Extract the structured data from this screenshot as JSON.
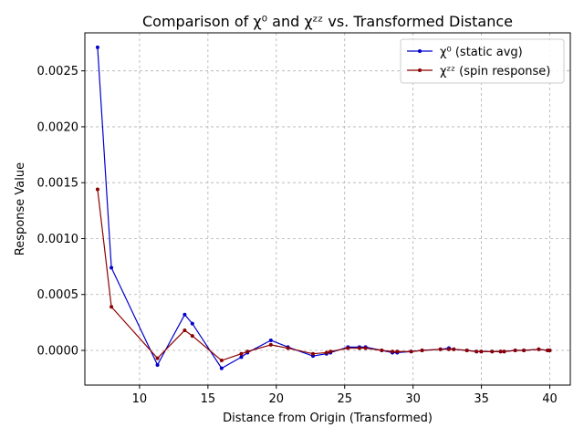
{
  "chart_data": {
    "type": "line",
    "title": "Comparison of χ⁰ and χᶻᶻ vs. Transformed Distance",
    "xlabel": "Distance from Origin (Transformed)",
    "ylabel": "Response Value",
    "xlim": [
      6.0,
      41.5
    ],
    "ylim": [
      -0.00031,
      0.00284
    ],
    "x_ticks": [
      10,
      15,
      20,
      25,
      30,
      35,
      40
    ],
    "x_tick_labels": [
      "10",
      "15",
      "20",
      "25",
      "30",
      "35",
      "40"
    ],
    "y_ticks": [
      0.0,
      0.0005,
      0.001,
      0.0015,
      0.002,
      0.0025
    ],
    "y_tick_labels": [
      "0.0000",
      "0.0005",
      "0.0010",
      "0.0015",
      "0.0020",
      "0.0025"
    ],
    "grid": true,
    "legend_position": "top-right",
    "x": [
      6.93,
      7.94,
      11.31,
      13.3,
      13.86,
      16.0,
      17.44,
      17.89,
      19.6,
      20.85,
      22.68,
      23.67,
      23.96,
      25.24,
      26.08,
      26.53,
      27.71,
      28.49,
      28.84,
      29.86,
      30.66,
      32.0,
      32.62,
      32.98,
      33.94,
      34.64,
      34.99,
      35.78,
      36.4,
      36.66,
      37.47,
      38.1,
      39.19,
      39.84,
      40.0
    ],
    "series": [
      {
        "name": "χ⁰ (static avg)",
        "color": "#0000cc",
        "values": [
          0.00271,
          0.00074,
          -0.00013,
          0.00032,
          0.00024,
          -0.00016,
          -6e-05,
          -2e-05,
          9e-05,
          3e-05,
          -5e-05,
          -3e-05,
          -2e-05,
          3e-05,
          3e-05,
          3e-05,
          0.0,
          -2e-05,
          -2e-05,
          -1e-05,
          0.0,
          1e-05,
          2e-05,
          1e-05,
          0.0,
          -1e-05,
          -1e-05,
          -1e-05,
          -1e-05,
          -1e-05,
          0.0,
          0.0,
          1e-05,
          0.0,
          0.0
        ]
      },
      {
        "name": "χᶻᶻ (spin response)",
        "color": "#8b0000",
        "values": [
          0.00144,
          0.00039,
          -7e-05,
          0.00018,
          0.00013,
          -9e-05,
          -3e-05,
          -1e-05,
          5e-05,
          2e-05,
          -3e-05,
          -2e-05,
          -1e-05,
          2e-05,
          2e-05,
          2e-05,
          0.0,
          -1e-05,
          -1e-05,
          -1e-05,
          0.0,
          1e-05,
          1e-05,
          1e-05,
          0.0,
          -1e-05,
          -1e-05,
          -1e-05,
          -1e-05,
          -1e-05,
          0.0,
          0.0,
          1e-05,
          0.0,
          0.0
        ]
      }
    ]
  }
}
